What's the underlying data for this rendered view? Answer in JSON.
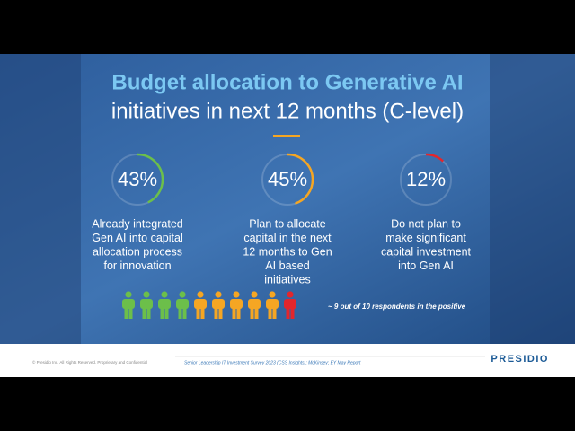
{
  "slide": {
    "title_line1": "Budget allocation to Generative AI",
    "title_line2": "initiatives in next 12 months (C-level)",
    "stats": [
      {
        "value": 43,
        "value_label": "43%",
        "color": "#6cbf4a",
        "description": [
          "Already integrated",
          "Gen AI into capital",
          "allocation process",
          "for innovation"
        ]
      },
      {
        "value": 45,
        "value_label": "45%",
        "color": "#f5a623",
        "description": [
          "Plan to allocate",
          "capital in the next",
          "12 months to Gen",
          "AI based",
          "initiatives"
        ]
      },
      {
        "value": 12,
        "value_label": "12%",
        "color": "#e3262c",
        "description": [
          "Do not plan to",
          "make significant",
          "capital investment",
          "into Gen AI"
        ]
      }
    ],
    "people": [
      {
        "count": 4,
        "color": "#6cbf4a"
      },
      {
        "count": 5,
        "color": "#f5a623"
      },
      {
        "count": 1,
        "color": "#e3262c"
      }
    ],
    "note": "~ 9 out of 10 respondents in the positive",
    "footer": {
      "copyright": "© Presidio Inc. All Rights Reserved. Proprietary and Confidential",
      "source": "Senior Leadership IT Investment Survey 2023 (CSS Insights); McKinsey; EY May Report",
      "logo": "PRESIDIO"
    }
  }
}
